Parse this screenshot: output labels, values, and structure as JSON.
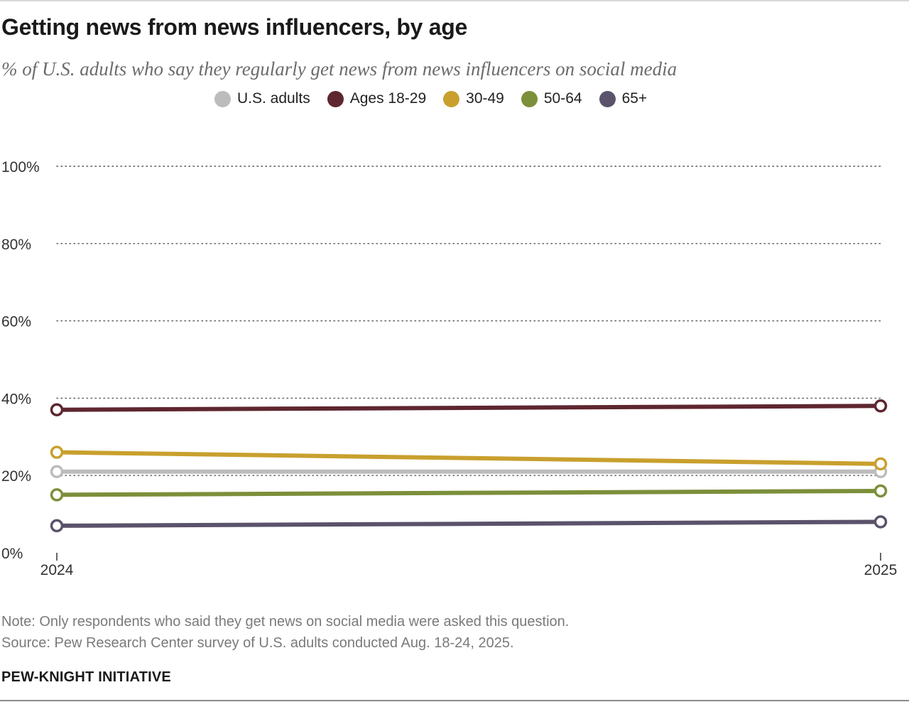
{
  "title": "Getting news from news influencers, by age",
  "subtitle": "% of U.S. adults who say they regularly get news from news influencers on social media",
  "note": "Note: Only respondents who said they get news on social media were asked this question.",
  "source": "Source: Pew Research Center survey of U.S. adults conducted Aug. 18-24, 2025.",
  "brand": "PEW-KNIGHT INITIATIVE",
  "chart_data": {
    "type": "line",
    "x": [
      "2024",
      "2025"
    ],
    "ylim": [
      0,
      100
    ],
    "yticks": [
      0,
      20,
      40,
      60,
      80,
      100
    ],
    "ytick_labels": [
      "0%",
      "20%",
      "40%",
      "60%",
      "80%",
      "100%"
    ],
    "grid": "horizontal dotted",
    "legend_position": "top",
    "series": [
      {
        "name": "U.S. adults",
        "color": "#bcbcbc",
        "values": [
          21,
          21
        ]
      },
      {
        "name": "Ages 18-29",
        "color": "#5e2630",
        "values": [
          37,
          38
        ]
      },
      {
        "name": "30-49",
        "color": "#c9a02e",
        "values": [
          26,
          23
        ]
      },
      {
        "name": "50-64",
        "color": "#7c8f3a",
        "values": [
          15,
          16
        ]
      },
      {
        "name": "65+",
        "color": "#5b526b",
        "values": [
          7,
          8
        ]
      }
    ]
  }
}
